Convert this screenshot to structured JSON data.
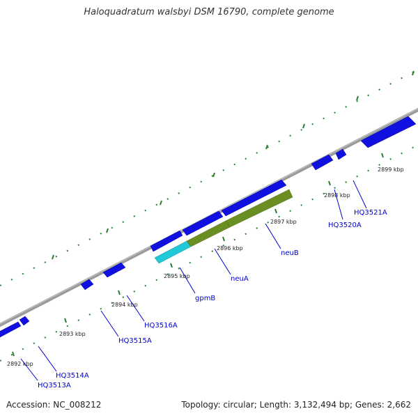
{
  "title": "Haloquadratum walsbyi DSM 16790, complete genome",
  "footer": {
    "accession": "Accession: NC_008212",
    "summary": "Topology: circular; Length: 3,132,494 bp; Genes: 2,662"
  },
  "colors": {
    "gene_blue": "#1010e0",
    "rna_teal": "#20c8d8",
    "cds_olive": "#6b8e23",
    "backbone": "#808080",
    "tick_green": "#2e7d32",
    "label_blue": "#0000cc"
  },
  "scale_labels": [
    "2892 kbp",
    "2893 kbp",
    "2894 kbp",
    "2895 kbp",
    "2896 kbp",
    "2897 kbp",
    "2898 kbp",
    "2899 kbp"
  ],
  "gene_labels": [
    "HQ3513A",
    "HQ3514A",
    "HQ3515A",
    "HQ3516A",
    "gpmB",
    "neuA",
    "neuB",
    "HQ3520A",
    "HQ3521A"
  ]
}
